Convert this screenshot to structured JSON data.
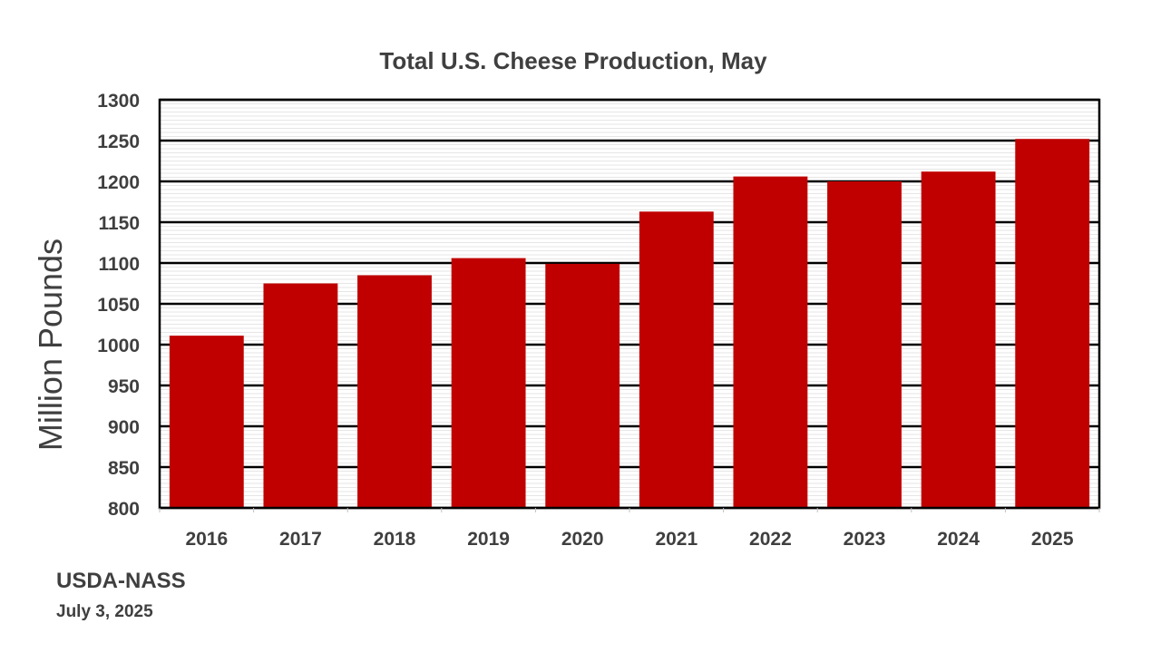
{
  "chart_data": {
    "type": "bar",
    "title": "Total U.S. Cheese Production, May",
    "xlabel": "",
    "ylabel": "Million Pounds",
    "ylim": [
      800,
      1300
    ],
    "ytick_step": 50,
    "yticks": [
      "800",
      "850",
      "900",
      "950",
      "1000",
      "1050",
      "1100",
      "1150",
      "1200",
      "1250",
      "1300"
    ],
    "grid": true,
    "categories": [
      "2016",
      "2017",
      "2018",
      "2019",
      "2020",
      "2021",
      "2022",
      "2023",
      "2024",
      "2025"
    ],
    "values": [
      1011,
      1075,
      1085,
      1106,
      1099,
      1163,
      1206,
      1200,
      1212,
      1252
    ],
    "bar_color": "#c00000",
    "gridline_color": "#000000",
    "text_color": "#3f3f3f"
  },
  "footer": {
    "source": "USDA-NASS",
    "date": "July 3, 2025"
  }
}
